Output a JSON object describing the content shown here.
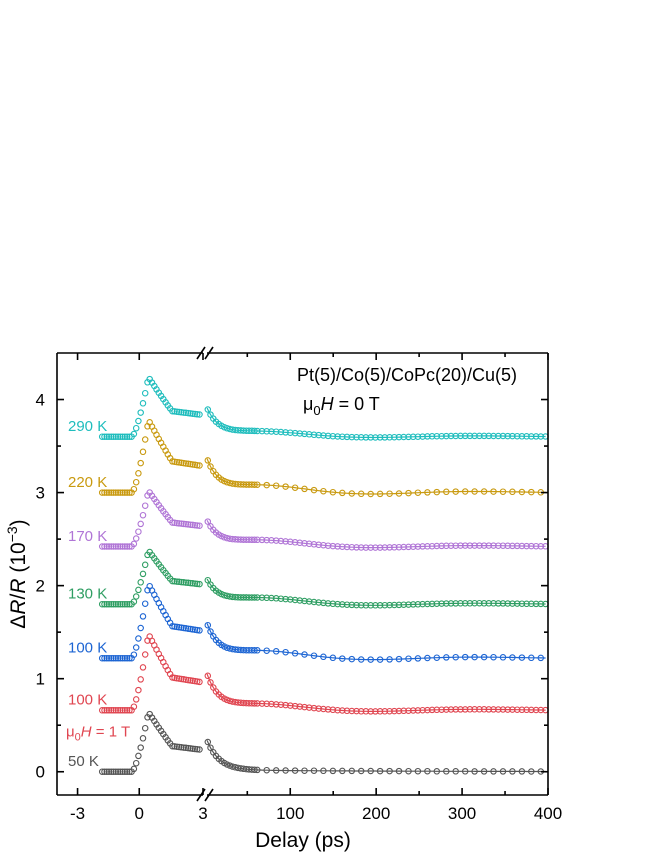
{
  "chart_data": {
    "type": "scatter",
    "title": "",
    "xlabel": "Delay (ps)",
    "ylabel_parts": [
      "Δ",
      "R",
      "/",
      "R",
      " (10",
      "−3",
      ")"
    ],
    "x_axis": {
      "broken": true,
      "left_segment": {
        "range": [
          -4,
          3.1
        ],
        "ticks": [
          -3,
          0,
          3
        ]
      },
      "right_segment": {
        "range": [
          3.1,
          400
        ],
        "ticks": [
          100,
          200,
          300,
          400
        ]
      }
    },
    "y_axis": {
      "range": [
        -0.25,
        4.5
      ],
      "ticks": [
        0,
        1,
        2,
        3,
        4
      ]
    },
    "annotations": [
      {
        "id": "sample",
        "text": "Pt(5)/Co(5)/CoPc(20)/Cu(5)"
      },
      {
        "id": "field",
        "parts": [
          "μ",
          "0",
          "H",
          " = 0 T"
        ]
      }
    ],
    "series": [
      {
        "name": "290 K",
        "color": "#1fbdbd",
        "offset": 3.6,
        "peak": 0.64,
        "dip": 0.08,
        "fit": false
      },
      {
        "name": "220 K",
        "color": "#c99a10",
        "offset": 3.0,
        "peak": 0.78,
        "dip": 0.12,
        "fit": true
      },
      {
        "name": "170 K",
        "color": "#b075d6",
        "offset": 2.42,
        "peak": 0.6,
        "dip": 0.1,
        "fit": false
      },
      {
        "name": "130 K",
        "color": "#2f9e63",
        "offset": 1.8,
        "peak": 0.58,
        "dip": 0.1,
        "fit": false
      },
      {
        "name": "100 K",
        "color": "#1d65d3",
        "offset": 1.22,
        "peak": 0.8,
        "dip": 0.12,
        "fit": true
      },
      {
        "name": "100 K",
        "color": "#e04651",
        "offset": 0.66,
        "peak": 0.82,
        "dip": 0.1,
        "fit": false
      },
      {
        "name": "50 K",
        "color": "#555555",
        "offset": 0.0,
        "peak": 0.64,
        "dip": 0.0,
        "fit": true
      }
    ],
    "extra_label": {
      "parts": [
        "μ",
        "0",
        "H",
        " = 1 T"
      ],
      "color": "#e04651"
    }
  }
}
